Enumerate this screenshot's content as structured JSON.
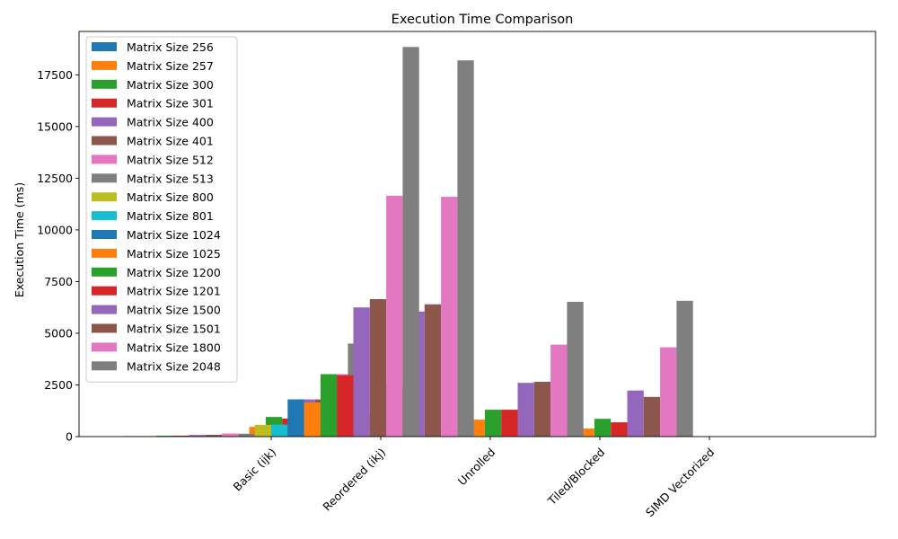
{
  "chart_data": {
    "type": "bar",
    "title": "Execution Time Comparison",
    "xlabel": "",
    "ylabel": "Execution Time (ms)",
    "ylim": [
      0,
      19600
    ],
    "yticks": [
      0,
      2500,
      5000,
      7500,
      10000,
      12500,
      15000,
      17500
    ],
    "ytick_labels": [
      "0",
      "2500",
      "5000",
      "7500",
      "10000",
      "12500",
      "15000",
      "17500"
    ],
    "categories": [
      "Basic (ijk)",
      "Reordered (ikj)",
      "Unrolled",
      "Tiled/Blocked",
      "SIMD Vectorized"
    ],
    "legend_position": "upper-left",
    "grid": false,
    "series": [
      {
        "name": "Matrix Size 256",
        "color": "#1f77b4",
        "values": [
          25,
          30,
          35,
          40,
          45
        ]
      },
      {
        "name": "Matrix Size 257",
        "color": "#ff7f0e",
        "values": [
          28,
          470,
          1080,
          820,
          390
        ]
      },
      {
        "name": "Matrix Size 300",
        "color": "#2ca02c",
        "values": [
          40,
          950,
          2580,
          1300,
          860
        ]
      },
      {
        "name": "Matrix Size 301",
        "color": "#d62728",
        "values": [
          45,
          870,
          2400,
          1300,
          690
        ]
      },
      {
        "name": "Matrix Size 400",
        "color": "#9467bd",
        "values": [
          80,
          1800,
          6050,
          2600,
          2230
        ]
      },
      {
        "name": "Matrix Size 401",
        "color": "#8c564b",
        "values": [
          85,
          1800,
          6400,
          2650,
          1920
        ]
      },
      {
        "name": "Matrix Size 512",
        "color": "#e377c2",
        "values": [
          150,
          3020,
          11600,
          4450,
          4320
        ]
      },
      {
        "name": "Matrix Size 513",
        "color": "#7f7f7f",
        "values": [
          140,
          4500,
          18200,
          6520,
          6570
        ]
      },
      {
        "name": "Matrix Size 800",
        "color": "#bcbd22",
        "values": [
          570,
          0,
          0,
          0,
          0
        ]
      },
      {
        "name": "Matrix Size 801",
        "color": "#17becf",
        "values": [
          580,
          0,
          0,
          0,
          0
        ]
      },
      {
        "name": "Matrix Size 1024",
        "color": "#1f77b4",
        "values": [
          1800,
          0,
          0,
          0,
          0
        ]
      },
      {
        "name": "Matrix Size 1025",
        "color": "#ff7f0e",
        "values": [
          1650,
          0,
          0,
          0,
          0
        ]
      },
      {
        "name": "Matrix Size 1200",
        "color": "#2ca02c",
        "values": [
          3020,
          0,
          0,
          0,
          0
        ]
      },
      {
        "name": "Matrix Size 1201",
        "color": "#d62728",
        "values": [
          2970,
          0,
          0,
          0,
          0
        ]
      },
      {
        "name": "Matrix Size 1500",
        "color": "#9467bd",
        "values": [
          6250,
          0,
          0,
          0,
          0
        ]
      },
      {
        "name": "Matrix Size 1501",
        "color": "#8c564b",
        "values": [
          6650,
          0,
          0,
          0,
          0
        ]
      },
      {
        "name": "Matrix Size 1800",
        "color": "#e377c2",
        "values": [
          11650,
          0,
          0,
          0,
          0
        ]
      },
      {
        "name": "Matrix Size 2048",
        "color": "#7f7f7f",
        "values": [
          18850,
          0,
          0,
          0,
          0
        ]
      }
    ]
  }
}
